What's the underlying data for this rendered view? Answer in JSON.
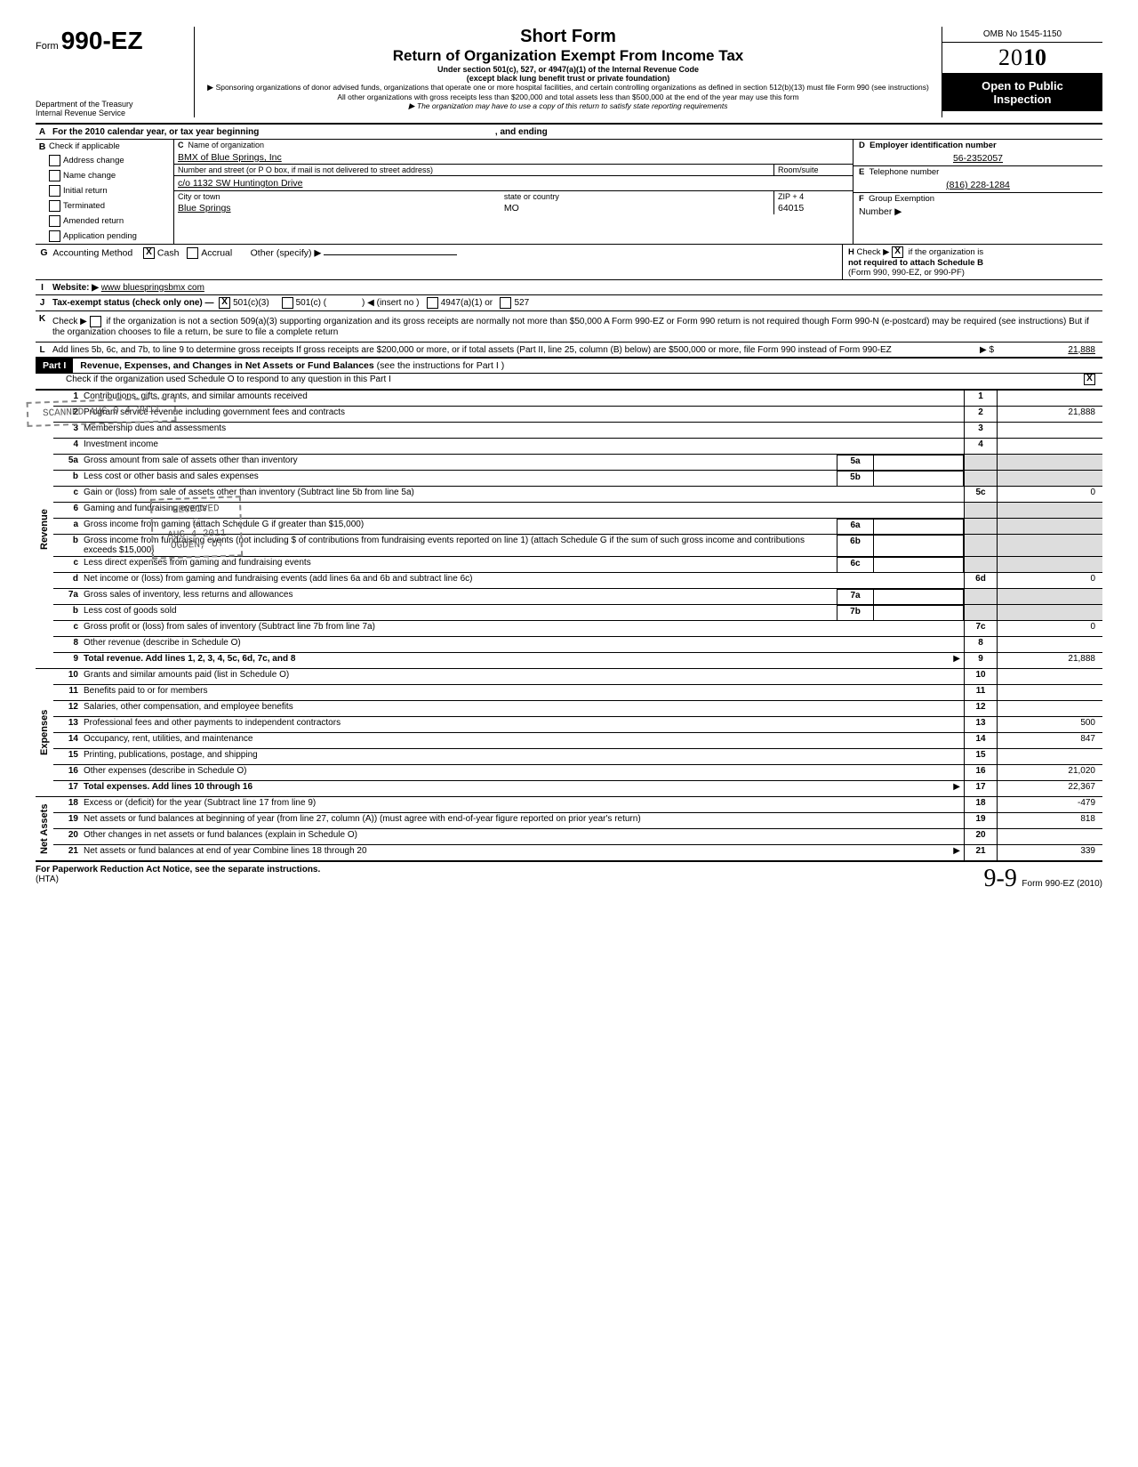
{
  "header": {
    "form_label": "Form",
    "form_number": "990-EZ",
    "dept1": "Department of the Treasury",
    "dept2": "Internal Revenue Service",
    "title_short": "Short Form",
    "title_main": "Return of Organization Exempt From Income Tax",
    "sub1": "Under section 501(c), 527, or 4947(a)(1) of the Internal Revenue Code",
    "sub2": "(except black lung benefit trust or private foundation)",
    "sub3": "Sponsoring organizations of donor advised funds, organizations that operate one or more hospital facilities, and certain controlling organizations as defined in section 512(b)(13) must file Form 990 (see instructions) All other organizations with gross receipts less than $200,000 and total assets less than $500,000 at the end of the year may use this form",
    "sub4": "The organization may have to use a copy of this return to satisfy state reporting requirements",
    "omb": "OMB No 1545-1150",
    "year_outline": "20",
    "year_bold": "10",
    "open1": "Open to Public",
    "open2": "Inspection"
  },
  "blockA": {
    "A": "For the 2010 calendar year, or tax year beginning",
    "A_end": ", and ending",
    "B": "Check if applicable",
    "B_items": [
      "Address change",
      "Name change",
      "Initial return",
      "Terminated",
      "Amended return",
      "Application pending"
    ],
    "C": "Name of organization",
    "C_val": "BMX of Blue Springs, Inc",
    "C_street_label": "Number and street (or P O  box, if mail is not delivered to street address)",
    "C_room": "Room/suite",
    "C_street": "c/o 1132 SW Huntington Drive",
    "C_city_label": "City or town",
    "C_state_label": "state or country",
    "C_zip_label": "ZIP + 4",
    "C_city": "Blue Springs",
    "C_state": "MO",
    "C_zip": "64015",
    "D": "Employer identification number",
    "D_val": "56-2352057",
    "E": "Telephone number",
    "E_val": "(816) 228-1284",
    "F": "Group Exemption",
    "F2": "Number ▶",
    "G": "Accounting Method",
    "G_cash": "Cash",
    "G_accrual": "Accrual",
    "G_other": "Other (specify) ▶",
    "H": "Check ▶",
    "H2": "if the organization is",
    "H3": "not required to attach Schedule B",
    "H4": "(Form 990, 990-EZ, or 990-PF)",
    "I": "Website: ▶",
    "I_val": "www bluespringsbmx com",
    "J": "Tax-exempt status (check only one) —",
    "J1": "501(c)(3)",
    "J2": "501(c) (",
    "J2b": ") ◀ (insert no )",
    "J3": "4947(a)(1) or",
    "J4": "527",
    "K": "Check ▶",
    "K_text": "if the organization is not a section 509(a)(3) supporting organization and its gross receipts are normally not more than $50,000 A Form 990-EZ or Form 990 return is not required though Form 990-N (e-postcard) may be required (see instructions)  But if the organization chooses to file a return, be sure to file a complete return",
    "L": "Add lines 5b, 6c, and 7b, to line 9 to determine gross receipts  If gross receipts are $200,000 or more, or if total assets (Part II, line  25, column (B) below) are $500,000 or more, file Form 990 instead of Form 990-EZ",
    "L_arrow": "▶ $",
    "L_val": "21,888"
  },
  "partI": {
    "label": "Part I",
    "title": "Revenue, Expenses, and Changes in Net Assets or Fund Balances",
    "title_suffix": " (see the instructions for Part I )",
    "check_line": "Check if the organization used Schedule O to respond to any question in this Part I"
  },
  "revenue_label": "Revenue",
  "stamp1": "SCANNED AUG 0 4 2011",
  "stamp2a": "RECEIVED",
  "stamp2b": "AUG 4 2011",
  "stamp2c": "OGDEN, UT",
  "lines_rev": [
    {
      "n": "1",
      "t": "Contributions, gifts, grants, and similar amounts received",
      "box": "1",
      "val": ""
    },
    {
      "n": "2",
      "t": "Program service revenue including government fees and contracts",
      "box": "2",
      "val": "21,888"
    },
    {
      "n": "3",
      "t": "Membership dues and assessments",
      "box": "3",
      "val": ""
    },
    {
      "n": "4",
      "t": "Investment income",
      "box": "4",
      "val": ""
    },
    {
      "n": "5a",
      "t": "Gross amount from sale of assets other than inventory",
      "mid": "5a"
    },
    {
      "n": "b",
      "t": "Less  cost or other basis and sales expenses",
      "mid": "5b"
    },
    {
      "n": "c",
      "t": "Gain or (loss) from sale of assets other than inventory (Subtract line 5b from line 5a)",
      "box": "5c",
      "val": "0"
    },
    {
      "n": "6",
      "t": "Gaming and fundraising events"
    },
    {
      "n": "a",
      "t": "Gross income from gaming (attach Schedule G if greater than $15,000)",
      "mid": "6a"
    },
    {
      "n": "b",
      "t": "Gross income from fundraising events (not including $                    of contributions from fundraising events reported on line 1) (attach Schedule G if the sum of such gross income and contributions exceeds $15,000)",
      "mid": "6b"
    },
    {
      "n": "c",
      "t": "Less  direct expenses from gaming and fundraising events",
      "mid": "6c"
    },
    {
      "n": "d",
      "t": "Net income or (loss) from gaming and fundraising events (add lines 6a and 6b and subtract line 6c)",
      "box": "6d",
      "val": "0"
    },
    {
      "n": "7a",
      "t": "Gross sales of inventory, less returns and allowances",
      "mid": "7a"
    },
    {
      "n": "b",
      "t": "Less  cost of goods sold",
      "mid": "7b"
    },
    {
      "n": "c",
      "t": "Gross profit or (loss) from sales of inventory (Subtract line 7b from line 7a)",
      "box": "7c",
      "val": "0"
    },
    {
      "n": "8",
      "t": "Other revenue (describe in Schedule O)",
      "box": "8",
      "val": ""
    },
    {
      "n": "9",
      "t": "Total revenue. Add lines 1, 2, 3, 4, 5c, 6d, 7c, and 8",
      "box": "9",
      "val": "21,888",
      "bold": true,
      "arrow": true
    }
  ],
  "expenses_label": "Expenses",
  "lines_exp": [
    {
      "n": "10",
      "t": "Grants and similar amounts paid (list in Schedule O)",
      "box": "10",
      "val": ""
    },
    {
      "n": "11",
      "t": "Benefits paid to or for members",
      "box": "11",
      "val": ""
    },
    {
      "n": "12",
      "t": "Salaries, other compensation, and employee benefits",
      "box": "12",
      "val": ""
    },
    {
      "n": "13",
      "t": "Professional fees and other payments to independent contractors",
      "box": "13",
      "val": "500"
    },
    {
      "n": "14",
      "t": "Occupancy, rent, utilities, and maintenance",
      "box": "14",
      "val": "847"
    },
    {
      "n": "15",
      "t": "Printing, publications, postage, and shipping",
      "box": "15",
      "val": ""
    },
    {
      "n": "16",
      "t": "Other expenses (describe in Schedule O)",
      "box": "16",
      "val": "21,020"
    },
    {
      "n": "17",
      "t": "Total expenses. Add lines 10 through 16",
      "box": "17",
      "val": "22,367",
      "bold": true,
      "arrow": true
    }
  ],
  "netassets_label": "Net Assets",
  "lines_net": [
    {
      "n": "18",
      "t": "Excess or (deficit) for the year (Subtract line 17 from line 9)",
      "box": "18",
      "val": "-479"
    },
    {
      "n": "19",
      "t": "Net assets or fund balances at beginning of year (from line 27, column (A)) (must agree with end-of-year figure reported on prior year's return)",
      "box": "19",
      "val": "818"
    },
    {
      "n": "20",
      "t": "Other changes in net assets or fund balances (explain in Schedule O)",
      "box": "20",
      "val": ""
    },
    {
      "n": "21",
      "t": "Net assets or fund balances at end of year  Combine lines 18 through 20",
      "box": "21",
      "val": "339",
      "arrow": true
    }
  ],
  "footer": {
    "left": "For Paperwork Reduction Act Notice, see the separate instructions.",
    "hta": "(HTA)",
    "right": "Form 990-EZ (2010)"
  }
}
